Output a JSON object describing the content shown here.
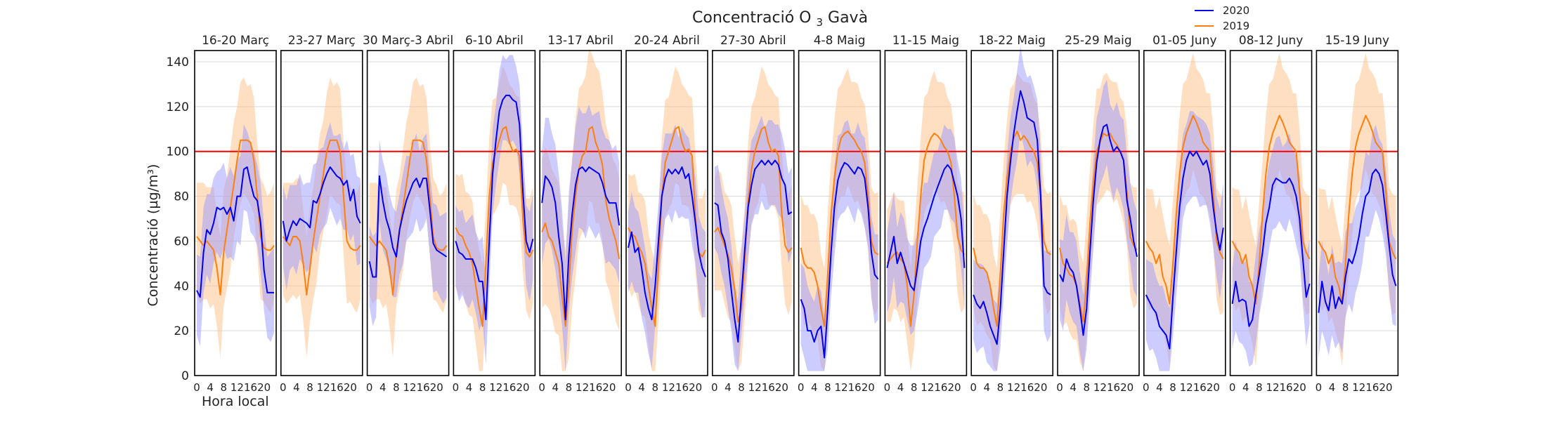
{
  "chart_data": {
    "type": "line",
    "title_main": "Concentració O",
    "title_sub": "3",
    "title_tail": " Gavà",
    "xlabel": "Hora local",
    "ylabel": "Concentració (µg/m³)",
    "ylim": [
      0,
      145
    ],
    "xlim": [
      0,
      23
    ],
    "y_ticks": [
      0,
      20,
      40,
      60,
      80,
      100,
      120,
      140
    ],
    "x_ticks": [
      0,
      4,
      8,
      12,
      16,
      20
    ],
    "grid": "horizontal",
    "threshold": {
      "value": 100,
      "color": "#ff0000"
    },
    "legend_position": "top-right",
    "colors": {
      "series_2020": "#0000ee",
      "series_2019": "#ff7f0e",
      "band_2020": "#9999ff",
      "band_2019": "#ffc58f"
    },
    "legend": [
      {
        "label": "2020"
      },
      {
        "label": "2019"
      }
    ],
    "panels": [
      {
        "title": "16-20 Març",
        "s2020": [
          38,
          35,
          55,
          65,
          63,
          68,
          75,
          74,
          75,
          72,
          75,
          69,
          80,
          80,
          92,
          93,
          86,
          80,
          78,
          68,
          47,
          37,
          37,
          37
        ],
        "s2019": [
          62,
          60,
          58,
          60,
          58,
          56,
          48,
          36,
          55,
          65,
          75,
          85,
          96,
          105,
          105,
          105,
          104,
          96,
          80,
          62,
          57,
          56,
          56,
          58
        ]
      },
      {
        "title": "23-27 Març",
        "s2020": [
          69,
          60,
          65,
          69,
          67,
          70,
          69,
          68,
          66,
          78,
          77,
          81,
          86,
          90,
          93,
          91,
          89,
          88,
          85,
          87,
          78,
          83,
          71,
          68
        ],
        "s2019": [
          62,
          60,
          58,
          62,
          62,
          60,
          50,
          36,
          48,
          60,
          70,
          80,
          90,
          100,
          105,
          105,
          105,
          100,
          80,
          60,
          57,
          56,
          56,
          58
        ]
      },
      {
        "title": "30 Març-3 Abril",
        "s2020": [
          51,
          44,
          44,
          89,
          78,
          70,
          65,
          57,
          53,
          65,
          72,
          78,
          82,
          86,
          88,
          84,
          88,
          88,
          74,
          59,
          56,
          55,
          54,
          53
        ],
        "s2019": [
          62,
          60,
          58,
          60,
          58,
          56,
          48,
          36,
          55,
          65,
          75,
          85,
          96,
          105,
          105,
          105,
          104,
          96,
          80,
          62,
          57,
          56,
          56,
          58
        ]
      },
      {
        "title": "6-10 Abril",
        "s2020": [
          60,
          55,
          54,
          52,
          52,
          52,
          48,
          42,
          42,
          25,
          60,
          90,
          105,
          118,
          123,
          125,
          125,
          123,
          122,
          112,
          82,
          60,
          55,
          61
        ],
        "s2019": [
          66,
          63,
          62,
          58,
          55,
          50,
          40,
          30,
          22,
          50,
          80,
          95,
          100,
          105,
          110,
          111,
          104,
          100,
          101,
          98,
          70,
          55,
          53,
          56
        ]
      },
      {
        "title": "13-17 Abril",
        "s2020": [
          77,
          89,
          87,
          84,
          77,
          62,
          50,
          25,
          54,
          72,
          85,
          92,
          93,
          91,
          93,
          92,
          91,
          90,
          86,
          80,
          77,
          77,
          77,
          67
        ],
        "s2019": [
          64,
          68,
          62,
          60,
          55,
          50,
          35,
          22,
          40,
          65,
          80,
          92,
          98,
          100,
          110,
          111,
          104,
          100,
          94,
          78,
          70,
          65,
          60,
          52
        ],
        "band_mod": 8
      },
      {
        "title": "20-24 Abril",
        "s2020": [
          57,
          64,
          55,
          57,
          48,
          37,
          30,
          25,
          40,
          60,
          80,
          88,
          92,
          90,
          92,
          90,
          93,
          88,
          90,
          80,
          68,
          55,
          48,
          44
        ],
        "s2019": [
          66,
          63,
          62,
          58,
          55,
          50,
          40,
          30,
          22,
          50,
          80,
          95,
          100,
          105,
          110,
          111,
          104,
          100,
          101,
          98,
          70,
          55,
          53,
          56
        ]
      },
      {
        "title": "27-30 Abril",
        "s2020": [
          77,
          76,
          64,
          60,
          52,
          38,
          25,
          15,
          36,
          56,
          75,
          85,
          92,
          94,
          96,
          94,
          96,
          94,
          96,
          94,
          88,
          85,
          72,
          73
        ],
        "s2019": [
          64,
          66,
          62,
          58,
          54,
          48,
          38,
          24,
          30,
          52,
          78,
          92,
          100,
          105,
          110,
          111,
          104,
          100,
          101,
          98,
          72,
          58,
          55,
          57
        ]
      },
      {
        "title": "4-8 Maig",
        "s2020": [
          34,
          30,
          20,
          20,
          15,
          20,
          22,
          8,
          30,
          55,
          75,
          87,
          92,
          95,
          94,
          92,
          90,
          93,
          92,
          88,
          75,
          55,
          45,
          43
        ],
        "s2019": [
          57,
          50,
          48,
          48,
          46,
          40,
          30,
          22,
          45,
          72,
          88,
          100,
          106,
          108,
          109,
          107,
          105,
          102,
          100,
          95,
          80,
          60,
          55,
          54
        ]
      },
      {
        "title": "11-15 Maig",
        "s2020": [
          48,
          55,
          62,
          50,
          55,
          50,
          45,
          40,
          38,
          48,
          60,
          66,
          70,
          75,
          80,
          84,
          88,
          92,
          94,
          92,
          86,
          80,
          70,
          48
        ],
        "s2019": [
          50,
          52,
          54,
          55,
          52,
          50,
          40,
          22,
          36,
          60,
          80,
          96,
          102,
          106,
          108,
          107,
          105,
          102,
          100,
          95,
          80,
          62,
          56,
          54
        ]
      },
      {
        "title": "18-22 Maig",
        "s2020": [
          36,
          32,
          30,
          33,
          28,
          22,
          18,
          14,
          30,
          55,
          80,
          95,
          108,
          118,
          127,
          122,
          115,
          114,
          113,
          105,
          80,
          40,
          37,
          36
        ],
        "s2019": [
          57,
          50,
          48,
          48,
          46,
          40,
          30,
          22,
          45,
          72,
          88,
          100,
          106,
          109,
          105,
          107,
          105,
          102,
          100,
          95,
          80,
          60,
          55,
          54
        ]
      },
      {
        "title": "25-29 Maig",
        "s2020": [
          45,
          42,
          52,
          48,
          46,
          40,
          30,
          18,
          30,
          55,
          78,
          95,
          105,
          111,
          112,
          105,
          100,
          102,
          100,
          96,
          78,
          70,
          60,
          53
        ],
        "s2019": [
          57,
          50,
          48,
          45,
          44,
          40,
          32,
          24,
          42,
          68,
          86,
          100,
          104,
          108,
          107,
          108,
          105,
          103,
          100,
          96,
          82,
          62,
          58,
          56
        ]
      },
      {
        "title": "01-05 Juny",
        "s2020": [
          36,
          33,
          30,
          28,
          22,
          20,
          18,
          12,
          35,
          55,
          75,
          88,
          96,
          100,
          98,
          100,
          97,
          94,
          96,
          90,
          75,
          64,
          56,
          66
        ],
        "s2019": [
          60,
          57,
          55,
          50,
          54,
          44,
          40,
          32,
          50,
          72,
          90,
          102,
          108,
          112,
          116,
          113,
          109,
          104,
          102,
          100,
          82,
          60,
          55,
          52
        ]
      },
      {
        "title": "08-12 Juny",
        "s2020": [
          32,
          42,
          33,
          34,
          33,
          22,
          25,
          36,
          45,
          55,
          68,
          75,
          85,
          88,
          87,
          86,
          86,
          88,
          85,
          80,
          70,
          52,
          35,
          41
        ],
        "s2019": [
          60,
          57,
          55,
          50,
          54,
          44,
          40,
          32,
          50,
          72,
          90,
          102,
          108,
          112,
          116,
          113,
          109,
          104,
          102,
          100,
          82,
          60,
          55,
          52
        ]
      },
      {
        "title": "15-19 Juny",
        "s2020": [
          28,
          42,
          33,
          29,
          40,
          30,
          35,
          32,
          44,
          52,
          50,
          55,
          62,
          72,
          80,
          82,
          90,
          92,
          90,
          85,
          72,
          58,
          45,
          40
        ],
        "s2019": [
          60,
          57,
          55,
          50,
          54,
          44,
          40,
          32,
          50,
          72,
          90,
          102,
          108,
          112,
          116,
          113,
          109,
          104,
          102,
          100,
          82,
          60,
          55,
          52
        ]
      }
    ]
  }
}
